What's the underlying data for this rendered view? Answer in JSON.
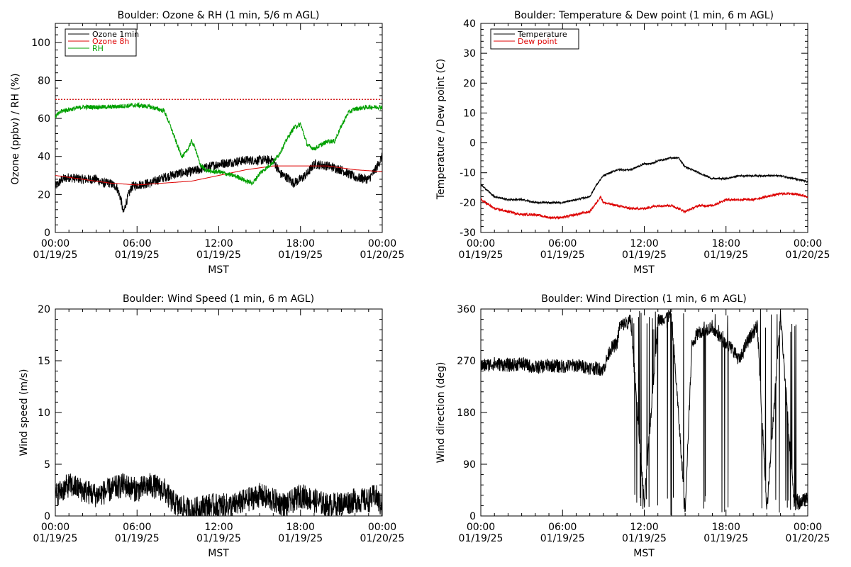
{
  "chart_data": [
    {
      "id": "ozone",
      "type": "line",
      "title": "Boulder: Ozone & RH (1 min, 5/6 m AGL)",
      "xlabel": "MST",
      "ylabel": "Ozone (ppbv) / RH (%)",
      "xlim": [
        0,
        24
      ],
      "ylim": [
        0,
        110
      ],
      "yticks": [
        0,
        20,
        40,
        60,
        80,
        100
      ],
      "xticks": [
        {
          "h": 0,
          "l1": "00:00",
          "l2": "01/19/25"
        },
        {
          "h": 6,
          "l1": "06:00",
          "l2": "01/19/25"
        },
        {
          "h": 12,
          "l1": "12:00",
          "l2": "01/19/25"
        },
        {
          "h": 18,
          "l1": "18:00",
          "l2": "01/19/25"
        },
        {
          "h": 24,
          "l1": "00:00",
          "l2": "01/20/25"
        }
      ],
      "reference_line": {
        "y": 70,
        "color": "#cc0000",
        "style": "dotted"
      },
      "legend_position": "top-left",
      "series": [
        {
          "name": "Ozone 1min",
          "color": "#000000",
          "noise": 2.5,
          "points": [
            [
              0,
              24
            ],
            [
              0.5,
              28
            ],
            [
              1,
              29
            ],
            [
              2,
              28
            ],
            [
              3,
              28
            ],
            [
              3.5,
              26
            ],
            [
              4,
              26
            ],
            [
              4.5,
              24
            ],
            [
              4.8,
              18
            ],
            [
              5.0,
              10
            ],
            [
              5.2,
              16
            ],
            [
              5.6,
              24
            ],
            [
              6,
              25
            ],
            [
              7,
              26
            ],
            [
              8,
              29
            ],
            [
              9,
              31
            ],
            [
              10,
              32
            ],
            [
              11,
              34
            ],
            [
              12,
              36
            ],
            [
              13,
              37
            ],
            [
              14,
              38
            ],
            [
              15,
              38
            ],
            [
              16,
              38
            ],
            [
              16.5,
              31
            ],
            [
              17,
              29
            ],
            [
              17.5,
              26
            ],
            [
              18,
              28
            ],
            [
              18.5,
              31
            ],
            [
              19,
              36
            ],
            [
              20,
              35
            ],
            [
              21,
              33
            ],
            [
              22,
              29
            ],
            [
              23,
              28
            ],
            [
              23.5,
              33
            ],
            [
              24,
              40
            ]
          ]
        },
        {
          "name": "Ozone 8h",
          "color": "#dd0000",
          "noise": 0,
          "points": [
            [
              0,
              30
            ],
            [
              2,
              28
            ],
            [
              4,
              26
            ],
            [
              6,
              25
            ],
            [
              8,
              26
            ],
            [
              10,
              27
            ],
            [
              12,
              30
            ],
            [
              14,
              33
            ],
            [
              16,
              35
            ],
            [
              18,
              35
            ],
            [
              20,
              35
            ],
            [
              22,
              33
            ],
            [
              24,
              32
            ]
          ]
        },
        {
          "name": "RH",
          "color": "#00a000",
          "noise": 1.2,
          "points": [
            [
              0,
              61
            ],
            [
              0.5,
              64
            ],
            [
              2,
              66
            ],
            [
              4,
              66
            ],
            [
              6,
              67
            ],
            [
              7,
              66
            ],
            [
              8,
              64
            ],
            [
              8.5,
              55
            ],
            [
              9,
              45
            ],
            [
              9.3,
              40
            ],
            [
              9.6,
              42
            ],
            [
              10,
              48
            ],
            [
              10.3,
              44
            ],
            [
              10.6,
              36
            ],
            [
              11,
              33
            ],
            [
              11.5,
              32
            ],
            [
              12,
              32
            ],
            [
              12.5,
              31
            ],
            [
              13,
              30
            ],
            [
              13.5,
              29
            ],
            [
              14,
              27
            ],
            [
              14.5,
              26
            ],
            [
              15,
              31
            ],
            [
              15.5,
              34
            ],
            [
              16,
              37
            ],
            [
              16.5,
              42
            ],
            [
              17,
              49
            ],
            [
              17.5,
              55
            ],
            [
              18,
              57
            ],
            [
              18.5,
              46
            ],
            [
              19,
              44
            ],
            [
              19.5,
              46
            ],
            [
              20,
              48
            ],
            [
              20.5,
              48
            ],
            [
              21,
              56
            ],
            [
              21.5,
              63
            ],
            [
              22,
              65
            ],
            [
              23,
              66
            ],
            [
              24,
              66
            ]
          ]
        }
      ]
    },
    {
      "id": "temp",
      "type": "line",
      "title": "Boulder: Temperature & Dew point (1 min, 6 m AGL)",
      "xlabel": "MST",
      "ylabel": "Temperature / Dew point (C)",
      "xlim": [
        0,
        24
      ],
      "ylim": [
        -30,
        40
      ],
      "yticks": [
        -30,
        -20,
        -10,
        0,
        10,
        20,
        30,
        40
      ],
      "xticks": [
        {
          "h": 0,
          "l1": "00:00",
          "l2": "01/19/25"
        },
        {
          "h": 6,
          "l1": "06:00",
          "l2": "01/19/25"
        },
        {
          "h": 12,
          "l1": "12:00",
          "l2": "01/19/25"
        },
        {
          "h": 18,
          "l1": "18:00",
          "l2": "01/19/25"
        },
        {
          "h": 24,
          "l1": "00:00",
          "l2": "01/20/25"
        }
      ],
      "legend_position": "top-left",
      "series": [
        {
          "name": "Temperature",
          "color": "#000000",
          "noise": 0.3,
          "points": [
            [
              0,
              -14
            ],
            [
              0.5,
              -16
            ],
            [
              1,
              -18
            ],
            [
              2,
              -19
            ],
            [
              3,
              -19
            ],
            [
              4,
              -20
            ],
            [
              5,
              -20
            ],
            [
              6,
              -20
            ],
            [
              7,
              -19
            ],
            [
              8,
              -18
            ],
            [
              8.5,
              -14
            ],
            [
              9,
              -11
            ],
            [
              10,
              -9
            ],
            [
              11,
              -9
            ],
            [
              11.5,
              -8
            ],
            [
              12,
              -7
            ],
            [
              12.5,
              -7
            ],
            [
              13,
              -6
            ],
            [
              14,
              -5
            ],
            [
              14.5,
              -5
            ],
            [
              15,
              -8
            ],
            [
              16,
              -10
            ],
            [
              17,
              -12
            ],
            [
              18,
              -12
            ],
            [
              19,
              -11
            ],
            [
              20,
              -11
            ],
            [
              21,
              -11
            ],
            [
              22,
              -11
            ],
            [
              23,
              -12
            ],
            [
              24,
              -13
            ]
          ]
        },
        {
          "name": "Dew point",
          "color": "#dd0000",
          "noise": 0.4,
          "points": [
            [
              0,
              -19
            ],
            [
              1,
              -22
            ],
            [
              2,
              -23
            ],
            [
              3,
              -24
            ],
            [
              4,
              -24
            ],
            [
              5,
              -25
            ],
            [
              6,
              -25
            ],
            [
              7,
              -24
            ],
            [
              8,
              -23
            ],
            [
              8.5,
              -20
            ],
            [
              8.8,
              -18
            ],
            [
              9,
              -20
            ],
            [
              10,
              -21
            ],
            [
              11,
              -22
            ],
            [
              12,
              -22
            ],
            [
              13,
              -21
            ],
            [
              14,
              -21
            ],
            [
              15,
              -23
            ],
            [
              16,
              -21
            ],
            [
              17,
              -21
            ],
            [
              18,
              -19
            ],
            [
              19,
              -19
            ],
            [
              20,
              -19
            ],
            [
              21,
              -18
            ],
            [
              22,
              -17
            ],
            [
              23,
              -17
            ],
            [
              24,
              -18
            ]
          ]
        }
      ]
    },
    {
      "id": "wind-speed",
      "type": "line",
      "title": "Boulder: Wind Speed (1 min, 6 m AGL)",
      "xlabel": "MST",
      "ylabel": "Wind speed (m/s)",
      "xlim": [
        0,
        24
      ],
      "ylim": [
        0,
        20
      ],
      "yticks": [
        0,
        5,
        10,
        15,
        20
      ],
      "xticks": [
        {
          "h": 0,
          "l1": "00:00",
          "l2": "01/19/25"
        },
        {
          "h": 6,
          "l1": "06:00",
          "l2": "01/19/25"
        },
        {
          "h": 12,
          "l1": "12:00",
          "l2": "01/19/25"
        },
        {
          "h": 18,
          "l1": "18:00",
          "l2": "01/19/25"
        },
        {
          "h": 24,
          "l1": "00:00",
          "l2": "01/20/25"
        }
      ],
      "series": [
        {
          "name": "",
          "color": "#000000",
          "noise": 1.2,
          "points": [
            [
              0,
              2
            ],
            [
              1,
              3
            ],
            [
              2,
              2.5
            ],
            [
              3,
              2
            ],
            [
              4,
              2.5
            ],
            [
              5,
              3
            ],
            [
              6,
              2.5
            ],
            [
              7,
              3
            ],
            [
              8,
              2.5
            ],
            [
              8.5,
              1.5
            ],
            [
              9,
              1
            ],
            [
              10,
              0.5
            ],
            [
              11,
              1
            ],
            [
              12,
              1
            ],
            [
              13,
              1
            ],
            [
              14,
              1.5
            ],
            [
              15,
              2
            ],
            [
              16,
              1.5
            ],
            [
              17,
              1
            ],
            [
              18,
              2
            ],
            [
              19,
              1.5
            ],
            [
              20,
              1
            ],
            [
              21,
              1.2
            ],
            [
              22,
              1.5
            ],
            [
              23,
              1.5
            ],
            [
              23.5,
              2
            ],
            [
              24,
              0.8
            ]
          ]
        }
      ]
    },
    {
      "id": "wind-dir",
      "type": "line",
      "title": "Boulder: Wind Direction (1 min, 6 m AGL)",
      "xlabel": "MST",
      "ylabel": "Wind direction (deg)",
      "xlim": [
        0,
        24
      ],
      "ylim": [
        0,
        360
      ],
      "yticks": [
        0,
        90,
        180,
        270,
        360
      ],
      "xticks": [
        {
          "h": 0,
          "l1": "00:00",
          "l2": "01/19/25"
        },
        {
          "h": 6,
          "l1": "06:00",
          "l2": "01/19/25"
        },
        {
          "h": 12,
          "l1": "12:00",
          "l2": "01/19/25"
        },
        {
          "h": 18,
          "l1": "18:00",
          "l2": "01/19/25"
        },
        {
          "h": 24,
          "l1": "00:00",
          "l2": "01/20/25"
        }
      ],
      "series": [
        {
          "name": "",
          "color": "#000000",
          "noise": 12,
          "wrap_spans": [
            [
              10.2,
              15.5
            ],
            [
              16.2,
              16.9
            ],
            [
              17.2,
              18.2
            ],
            [
              20.3,
              24
            ]
          ],
          "points": [
            [
              0,
              260
            ],
            [
              1,
              265
            ],
            [
              2,
              262
            ],
            [
              3,
              265
            ],
            [
              4,
              258
            ],
            [
              5,
              262
            ],
            [
              6,
              260
            ],
            [
              7,
              262
            ],
            [
              8,
              258
            ],
            [
              9,
              255
            ],
            [
              9.5,
              290
            ],
            [
              10,
              300
            ],
            [
              10.2,
              330
            ],
            [
              11,
              340
            ],
            [
              12,
              20
            ],
            [
              13,
              340
            ],
            [
              14,
              350
            ],
            [
              15,
              10
            ],
            [
              15.5,
              300
            ],
            [
              16,
              320
            ],
            [
              17,
              330
            ],
            [
              17.2,
              320
            ],
            [
              18,
              300
            ],
            [
              18.5,
              290
            ],
            [
              19,
              270
            ],
            [
              19.5,
              300
            ],
            [
              20,
              320
            ],
            [
              20.3,
              330
            ],
            [
              21,
              10
            ],
            [
              22,
              350
            ],
            [
              23,
              20
            ],
            [
              24,
              30
            ]
          ]
        }
      ]
    }
  ]
}
